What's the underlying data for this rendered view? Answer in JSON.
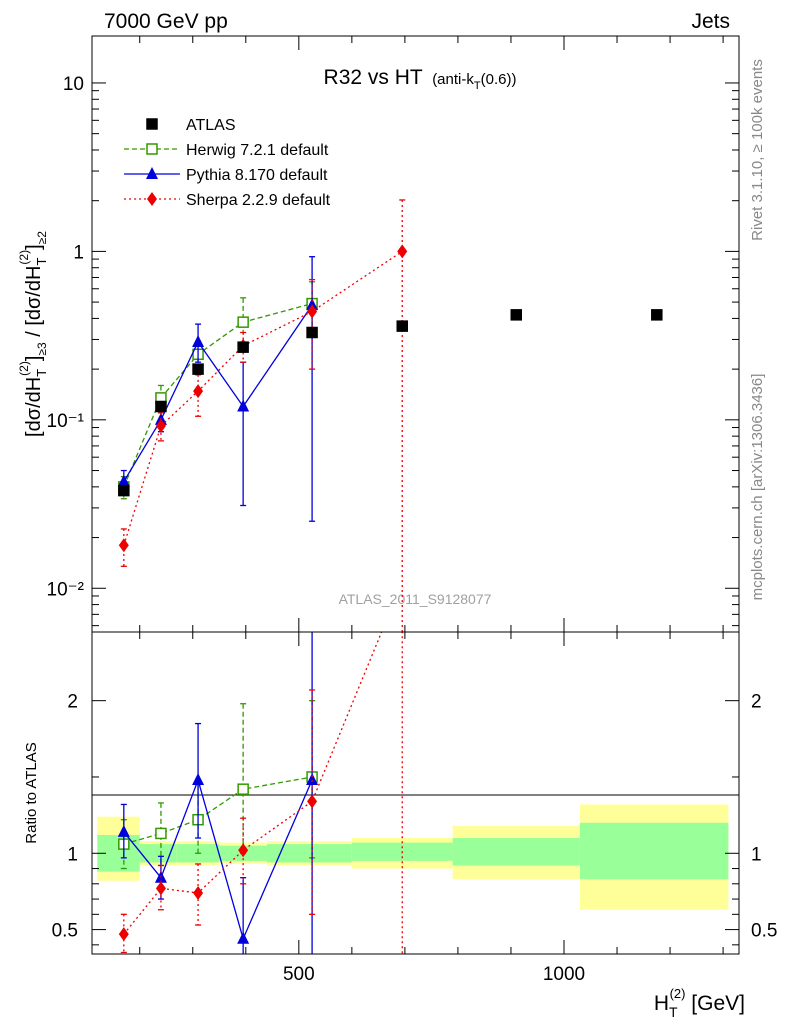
{
  "header": {
    "left": "7000 GeV pp",
    "right": "Jets"
  },
  "side_labels": {
    "rivet": "Rivet 3.1.10, ≥ 100k events",
    "mcplots": "mcplots.cern.ch [arXiv:1306.3436]"
  },
  "chart_data": [
    {
      "type": "scatter",
      "title": "R32 vs HT",
      "title_suffix": "(anti-k",
      "title_suffix_sub": "T",
      "title_suffix_end": "(0.6))",
      "watermark": "ATLAS_2011_S9128077",
      "ylabel": "[dσ/dH_T^(2)]_{≥3} / [dσ/dH_T^(2)]_{≥2}",
      "yscale": "log",
      "ylim": [
        0.0055,
        19
      ],
      "xlim": [
        110,
        1330
      ],
      "ytick_labels": [
        "10⁻²",
        "10⁻¹",
        "1",
        "10"
      ],
      "legend_placement": "top-left",
      "series": [
        {
          "name": "ATLAS",
          "color": "#000000",
          "marker": "filled-square",
          "x": [
            170,
            240,
            310,
            395,
            525,
            695,
            910,
            1175
          ],
          "y": [
            0.038,
            0.12,
            0.2,
            0.27,
            0.33,
            0.36,
            0.42,
            0.42
          ],
          "x_err": [
            null,
            null,
            null,
            null,
            null,
            null,
            null,
            null
          ]
        },
        {
          "name": "Herwig 7.2.1 default",
          "color": "#339900",
          "marker": "open-square",
          "line": "dashed",
          "x": [
            170,
            240,
            310,
            395,
            525
          ],
          "y": [
            0.04,
            0.135,
            0.245,
            0.38,
            0.49
          ],
          "y_lo": [
            0.034,
            0.11,
            0.2,
            0.27,
            0.32
          ],
          "y_hi": [
            0.046,
            0.16,
            0.29,
            0.53,
            0.66
          ]
        },
        {
          "name": "Pythia 8.170 default",
          "color": "#0000dd",
          "marker": "filled-triangle",
          "line": "solid",
          "x": [
            170,
            240,
            310,
            395,
            525
          ],
          "y": [
            0.043,
            0.1,
            0.29,
            0.12,
            0.48
          ],
          "y_lo": [
            0.036,
            0.085,
            0.22,
            0.031,
            0.025
          ],
          "y_hi": [
            0.05,
            0.12,
            0.37,
            0.22,
            0.93
          ]
        },
        {
          "name": "Sherpa 2.2.9 default",
          "color": "#ee0000",
          "marker": "filled-diamond",
          "line": "dotted",
          "x": [
            170,
            240,
            310,
            395,
            525,
            695
          ],
          "y": [
            0.018,
            0.092,
            0.148,
            0.275,
            0.44,
            1.0
          ],
          "y_lo": [
            0.0135,
            0.075,
            0.105,
            0.22,
            0.2,
            0.004
          ],
          "y_hi": [
            0.0225,
            0.11,
            0.185,
            0.33,
            0.68,
            2.02
          ]
        }
      ]
    },
    {
      "type": "line",
      "ylabel": "Ratio to ATLAS",
      "xlabel": "H_T^(2) [GeV]",
      "ylim": [
        0.34,
        2.45
      ],
      "xlim": [
        110,
        1330
      ],
      "x_ticks": [
        500,
        1000
      ],
      "y_ticks": [
        0.5,
        1,
        2
      ],
      "bands": {
        "edges": [
          120,
          200,
          270,
          350,
          440,
          600,
          790,
          1030,
          1310
        ],
        "inner_lo": [
          0.88,
          0.94,
          0.94,
          0.95,
          0.94,
          0.95,
          0.92,
          0.83
        ],
        "inner_hi": [
          1.12,
          1.06,
          1.06,
          1.05,
          1.06,
          1.07,
          1.1,
          1.2
        ],
        "outer_lo": [
          0.82,
          0.92,
          0.92,
          0.93,
          0.92,
          0.9,
          0.83,
          0.63
        ],
        "outer_hi": [
          1.24,
          1.08,
          1.08,
          1.07,
          1.08,
          1.1,
          1.18,
          1.32
        ],
        "inner_color": "#99ff99",
        "outer_color": "#ffff99"
      },
      "series": [
        {
          "name": "Herwig 7.2.1 default",
          "color": "#339900",
          "line": "dashed",
          "marker": "open-square",
          "x": [
            170,
            240,
            310,
            395,
            525
          ],
          "y": [
            1.06,
            1.13,
            1.22,
            1.42,
            1.5
          ],
          "y_lo": [
            0.9,
            0.92,
            1.0,
            1.0,
            0.97
          ],
          "y_hi": [
            1.22,
            1.33,
            1.45,
            1.98,
            2.0
          ]
        },
        {
          "name": "Pythia 8.170 default",
          "color": "#0000dd",
          "line": "solid",
          "marker": "filled-triangle",
          "x": [
            170,
            240,
            310,
            395,
            525
          ],
          "y": [
            1.14,
            0.84,
            1.48,
            0.44,
            1.48
          ],
          "y_lo": [
            0.97,
            0.7,
            1.1,
            0.11,
            0.08
          ],
          "y_hi": [
            1.32,
            0.98,
            1.85,
            0.84,
            2.82
          ]
        },
        {
          "name": "Sherpa 2.2.9 default",
          "color": "#ee0000",
          "line": "dotted",
          "marker": "filled-diamond",
          "x": [
            170,
            240,
            310,
            395,
            525,
            695
          ],
          "y": [
            0.47,
            0.77,
            0.74,
            1.02,
            1.34,
            2.78
          ],
          "y_lo": [
            0.35,
            0.63,
            0.53,
            0.8,
            0.6,
            0.01
          ],
          "y_hi": [
            0.6,
            0.92,
            0.93,
            1.23,
            2.07,
            5.6
          ]
        }
      ]
    }
  ]
}
